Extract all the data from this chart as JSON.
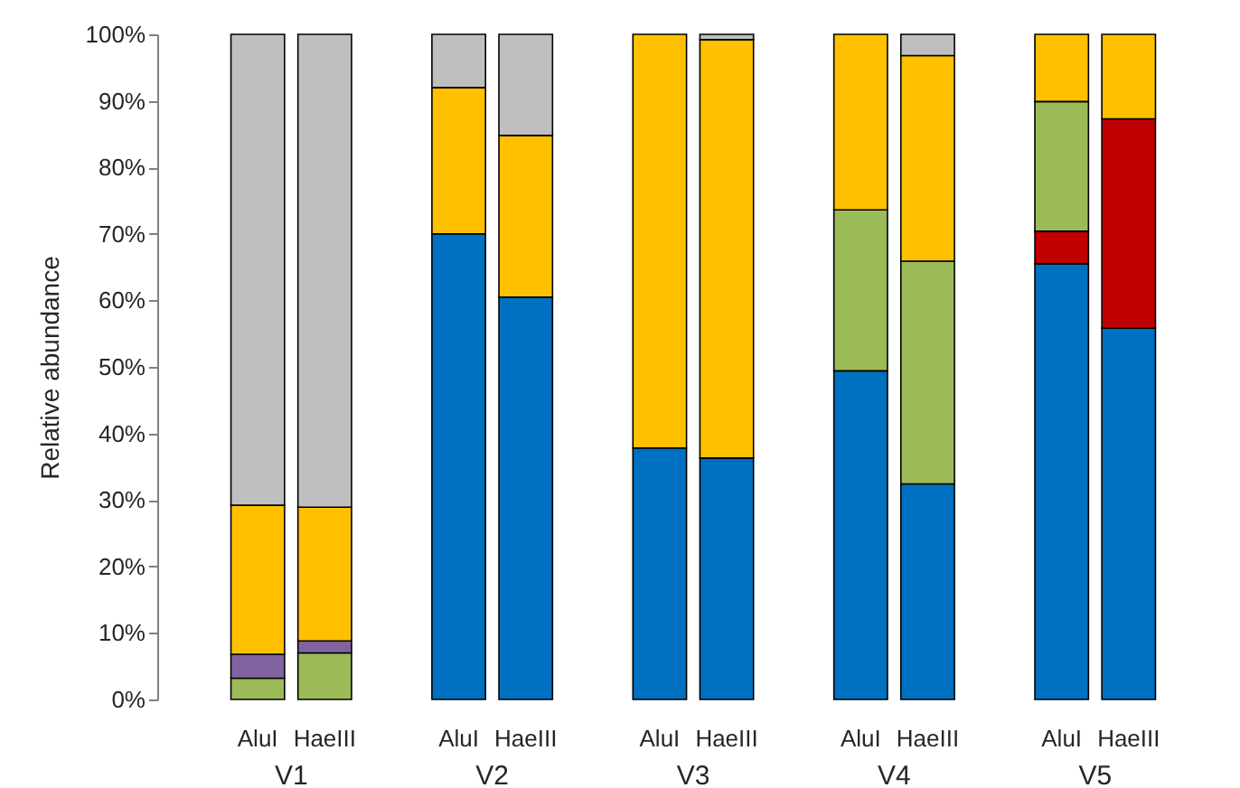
{
  "chart_data": {
    "type": "bar",
    "stacked": true,
    "ylabel": "Relative abundance",
    "categories": [
      "AluI",
      "HaeIII",
      "AluI",
      "HaeIII",
      "AluI",
      "HaeIII",
      "AluI",
      "HaeIII",
      "AluI",
      "HaeIII"
    ],
    "annotations": [
      "V1",
      "V2",
      "V3",
      "V4",
      "V5"
    ],
    "series": [
      {
        "color": "#0070c0",
        "values": [
          null,
          null,
          70.0,
          60.5,
          37.8,
          36.3,
          49.4,
          32.4,
          65.5,
          55.8
        ]
      },
      {
        "color": "#c00000",
        "values": [
          null,
          null,
          null,
          null,
          null,
          null,
          null,
          null,
          4.9,
          31.5
        ]
      },
      {
        "color": "#9bbb59",
        "values": [
          3.2,
          7.0,
          null,
          null,
          null,
          null,
          24.2,
          33.5,
          19.5,
          null
        ]
      },
      {
        "color": "#8064a2",
        "values": [
          3.6,
          1.8,
          null,
          null,
          null,
          null,
          null,
          null,
          null,
          null
        ]
      },
      {
        "color": "#ffc000",
        "values": [
          22.4,
          20.1,
          22.0,
          24.3,
          62.2,
          62.9,
          26.4,
          30.9,
          10.1,
          12.7
        ]
      },
      {
        "color": "#bfbfbf",
        "values": [
          70.8,
          71.1,
          8.0,
          15.2,
          null,
          0.8,
          null,
          3.2,
          null,
          null
        ]
      }
    ],
    "ylim": [
      0,
      100
    ],
    "yticks": [
      {
        "value": 0,
        "label": "0%"
      },
      {
        "value": 10,
        "label": "10%"
      },
      {
        "value": 20,
        "label": "20%"
      },
      {
        "value": 30,
        "label": "30%"
      },
      {
        "value": 40,
        "label": "40%"
      },
      {
        "value": 50,
        "label": "50%"
      },
      {
        "value": 60,
        "label": "60%"
      },
      {
        "value": 70,
        "label": "70%"
      },
      {
        "value": 80,
        "label": "80%"
      },
      {
        "value": 90,
        "label": "90%"
      },
      {
        "value": 100,
        "label": "100%"
      }
    ],
    "grid": false
  }
}
